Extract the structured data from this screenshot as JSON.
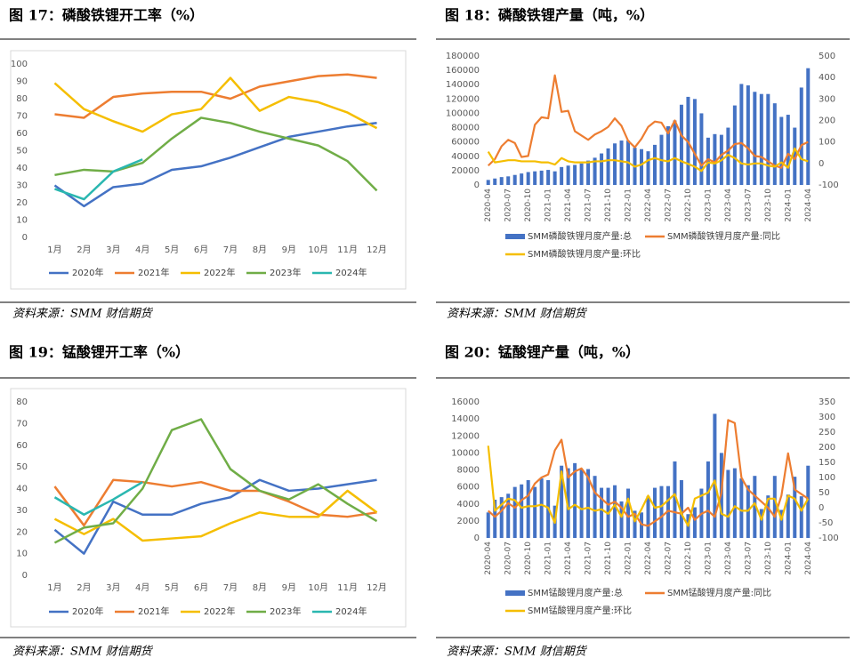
{
  "chart_data": [
    {
      "type": "line",
      "title": "图 17：磷酸铁锂开工率（%）",
      "source": "资料来源：SMM 财信期货",
      "categories": [
        "1月",
        "2月",
        "3月",
        "4月",
        "5月",
        "6月",
        "7月",
        "8月",
        "9月",
        "10月",
        "11月",
        "12月"
      ],
      "ylim": [
        0,
        100
      ],
      "yticks": [
        0,
        10,
        20,
        30,
        40,
        50,
        60,
        70,
        80,
        90,
        100
      ],
      "legend": "bottom",
      "series": [
        {
          "name": "2020年",
          "color": "#4472c4",
          "values": [
            30,
            18,
            29,
            31,
            39,
            41,
            46,
            52,
            58,
            61,
            64,
            66
          ]
        },
        {
          "name": "2021年",
          "color": "#ed7d31",
          "values": [
            71,
            69,
            81,
            83,
            84,
            84,
            80,
            87,
            90,
            93,
            94,
            92
          ]
        },
        {
          "name": "2022年",
          "color": "#f5be00",
          "values": [
            89,
            74,
            67,
            61,
            71,
            74,
            92,
            73,
            81,
            78,
            72,
            63
          ]
        },
        {
          "name": "2023年",
          "color": "#70ad47",
          "values": [
            36,
            39,
            38,
            43,
            57,
            69,
            66,
            61,
            57,
            53,
            44,
            27
          ]
        },
        {
          "name": "2024年",
          "color": "#2ab7b0",
          "values": [
            28,
            22,
            38,
            45,
            null,
            null,
            null,
            null,
            null,
            null,
            null,
            null
          ]
        }
      ]
    },
    {
      "type": "combo",
      "title": "图 18：磷酸铁锂产量（吨，%）",
      "source": "资料来源：SMM 财信期货",
      "categories": [
        "2020-04",
        null,
        null,
        "2020-07",
        null,
        null,
        "2020-10",
        null,
        null,
        "2021-01",
        null,
        null,
        "2021-04",
        null,
        null,
        "2021-07",
        null,
        null,
        "2021-10",
        null,
        null,
        "2022-01",
        null,
        null,
        "2022-04",
        null,
        null,
        "2022-07",
        null,
        null,
        "2022-10",
        null,
        null,
        "2023-01",
        null,
        null,
        "2023-04",
        null,
        null,
        "2023-07",
        null,
        null,
        "2023-10",
        null,
        null,
        "2024-01",
        null,
        null,
        "2024-04"
      ],
      "ylim": [
        0,
        180000
      ],
      "yticks": [
        0,
        20000,
        40000,
        60000,
        80000,
        100000,
        120000,
        140000,
        160000,
        180000
      ],
      "y2lim": [
        -100,
        500
      ],
      "y2ticks": [
        -100,
        0,
        100,
        200,
        300,
        400,
        500
      ],
      "legend": "bottom",
      "series": [
        {
          "name": "SMM磷酸铁锂月度产量:总",
          "type": "bar",
          "color": "#4472c4",
          "values": [
            7000,
            9000,
            11000,
            12000,
            14000,
            16000,
            18000,
            19000,
            20000,
            21000,
            19000,
            25000,
            27000,
            28000,
            30000,
            34000,
            38000,
            44000,
            51000,
            58000,
            62000,
            62000,
            52000,
            50000,
            47000,
            56000,
            70000,
            82000,
            90000,
            112000,
            123000,
            120000,
            100000,
            66000,
            71000,
            70000,
            80000,
            111000,
            141000,
            139000,
            130000,
            127000,
            127000,
            114000,
            95000,
            98000,
            80000,
            136000,
            163000
          ]
        },
        {
          "name": "SMM磷酸铁锂月度产量:同比",
          "type": "line",
          "axis": "y2",
          "color": "#ed7d31",
          "values": [
            -10,
            20,
            80,
            110,
            95,
            30,
            35,
            180,
            215,
            210,
            410,
            240,
            245,
            150,
            130,
            110,
            135,
            150,
            170,
            210,
            175,
            105,
            75,
            115,
            170,
            195,
            190,
            140,
            200,
            130,
            100,
            45,
            -10,
            20,
            5,
            40,
            60,
            90,
            95,
            70,
            35,
            30,
            10,
            -10,
            -20,
            45,
            20,
            85,
            100
          ]
        },
        {
          "name": "SMM磷酸铁锂月度产量:环比",
          "type": "line",
          "axis": "y2",
          "color": "#f5be00",
          "values": [
            55,
            5,
            10,
            15,
            15,
            10,
            10,
            10,
            5,
            5,
            -5,
            25,
            10,
            5,
            5,
            5,
            10,
            10,
            15,
            15,
            10,
            5,
            -15,
            -5,
            15,
            25,
            15,
            10,
            25,
            10,
            -2,
            -15,
            -35,
            5,
            0,
            15,
            40,
            25,
            0,
            -5,
            0,
            0,
            -10,
            -15,
            5,
            -20,
            70,
            20,
            10
          ]
        }
      ]
    },
    {
      "type": "line",
      "title": "图 19：锰酸锂开工率（%）",
      "source": "资料来源：SMM 财信期货",
      "categories": [
        "1月",
        "2月",
        "3月",
        "4月",
        "5月",
        "6月",
        "7月",
        "8月",
        "9月",
        "10月",
        "11月",
        "12月"
      ],
      "ylim": [
        0,
        80
      ],
      "yticks": [
        0,
        10,
        20,
        30,
        40,
        50,
        60,
        70,
        80
      ],
      "legend": "bottom",
      "series": [
        {
          "name": "2020年",
          "color": "#4472c4",
          "values": [
            21,
            10,
            34,
            28,
            28,
            33,
            36,
            44,
            39,
            40,
            42,
            44
          ]
        },
        {
          "name": "2021年",
          "color": "#ed7d31",
          "values": [
            41,
            23,
            44,
            43,
            41,
            43,
            39,
            39,
            34,
            28,
            27,
            29
          ]
        },
        {
          "name": "2022年",
          "color": "#f5be00",
          "values": [
            26,
            19,
            26,
            16,
            17,
            18,
            24,
            29,
            27,
            27,
            39,
            29
          ]
        },
        {
          "name": "2023年",
          "color": "#70ad47",
          "values": [
            15,
            22,
            24,
            40,
            67,
            72,
            49,
            39,
            35,
            42,
            33,
            25
          ]
        },
        {
          "name": "2024年",
          "color": "#2ab7b0",
          "values": [
            36,
            28,
            35,
            43,
            null,
            null,
            null,
            null,
            null,
            null,
            null,
            null
          ]
        }
      ]
    },
    {
      "type": "combo",
      "title": "图 20：锰酸锂产量（吨，%）",
      "source": "资料来源：SMM 财信期货",
      "categories": [
        "2020-04",
        null,
        null,
        "2020-07",
        null,
        null,
        "2020-10",
        null,
        null,
        "2021-01",
        null,
        null,
        "2021-04",
        null,
        null,
        "2021-07",
        null,
        null,
        "2021-10",
        null,
        null,
        "2022-01",
        null,
        null,
        "2022-04",
        null,
        null,
        "2022-07",
        null,
        null,
        "2022-10",
        null,
        null,
        "2023-01",
        null,
        null,
        "2023-04",
        null,
        null,
        "2023-07",
        null,
        null,
        "2023-10",
        null,
        null,
        "2024-01",
        null,
        null,
        "2024-04"
      ],
      "ylim": [
        0,
        16000
      ],
      "yticks": [
        0,
        2000,
        4000,
        6000,
        8000,
        10000,
        12000,
        14000,
        16000
      ],
      "y2lim": [
        -100,
        350
      ],
      "y2ticks": [
        -100,
        -50,
        0,
        50,
        100,
        150,
        200,
        250,
        300,
        350
      ],
      "legend": "bottom",
      "series": [
        {
          "name": "SMM锰酸锂月度产量:总",
          "type": "bar",
          "color": "#4472c4",
          "values": [
            3000,
            4500,
            4800,
            5200,
            6000,
            6300,
            6800,
            6000,
            7000,
            6800,
            3800,
            8500,
            8200,
            8800,
            8100,
            8100,
            7300,
            5900,
            5900,
            6200,
            4300,
            5800,
            3200,
            3000,
            4900,
            5900,
            6100,
            6100,
            9000,
            6800,
            2800,
            3600,
            5800,
            9000,
            14600,
            10000,
            8000,
            8200,
            7000,
            6200,
            7300,
            3400,
            5000,
            7300,
            3300,
            5100,
            7200,
            4900,
            8500
          ]
        },
        {
          "name": "SMM锰酸锂月度产量:同比",
          "type": "line",
          "axis": "y2",
          "color": "#ed7d31",
          "values": [
            -10,
            -30,
            -10,
            15,
            0,
            25,
            40,
            80,
            100,
            110,
            190,
            225,
            100,
            120,
            130,
            100,
            50,
            30,
            10,
            20,
            0,
            -30,
            -20,
            -55,
            -60,
            -45,
            -30,
            -10,
            -15,
            -20,
            0,
            -40,
            -20,
            -10,
            -30,
            50,
            290,
            280,
            100,
            60,
            40,
            20,
            0,
            -30,
            40,
            180,
            60,
            45,
            30
          ]
        },
        {
          "name": "SMM锰酸锂月度产量:环比",
          "type": "line",
          "axis": "y2",
          "color": "#f5be00",
          "values": [
            205,
            -10,
            10,
            30,
            25,
            0,
            5,
            5,
            10,
            0,
            -50,
            120,
            -5,
            10,
            -5,
            0,
            -10,
            -5,
            -20,
            10,
            -30,
            30,
            -45,
            -5,
            40,
            0,
            5,
            25,
            45,
            -20,
            -60,
            30,
            40,
            50,
            90,
            -20,
            -30,
            5,
            -10,
            -10,
            15,
            -40,
            30,
            30,
            -40,
            40,
            30,
            -10,
            30
          ]
        }
      ]
    }
  ]
}
